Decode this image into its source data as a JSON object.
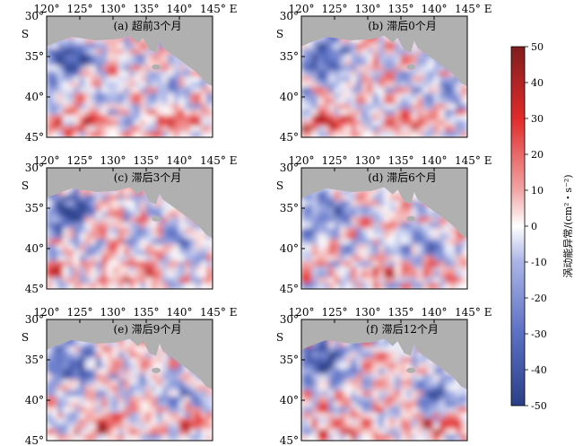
{
  "figure": {
    "colorbar": {
      "label": "涡动能异常/(cm²・s⁻²)",
      "min": -50,
      "max": 50,
      "ticks": [
        50,
        40,
        30,
        20,
        10,
        0,
        -10,
        -20,
        -30,
        -40,
        -50
      ],
      "colors": [
        "#2a3f87",
        "#5b6fc4",
        "#a9b4e6",
        "#ffffff",
        "#f2a5a5",
        "#e22a2a",
        "#7f1d1d"
      ]
    },
    "land_color": "#b0b0b0"
  },
  "chart_data": {
    "type": "heatmap",
    "x_tick_labels": [
      "120°",
      "125°",
      "130°",
      "135°",
      "140°",
      "145° E"
    ],
    "y_tick_labels": [
      "30°",
      "35°",
      "40°",
      "45°"
    ],
    "y_hemisphere_label": "S",
    "x_range": [
      120,
      145
    ],
    "y_range": [
      -45,
      -30
    ],
    "panels": [
      {
        "id": "a",
        "title": "(a) 超前3个月"
      },
      {
        "id": "b",
        "title": "(b) 滞后0个月"
      },
      {
        "id": "c",
        "title": "(c) 滞后3个月"
      },
      {
        "id": "d",
        "title": "(d) 滞后6个月"
      },
      {
        "id": "e",
        "title": "(e) 滞后9个月"
      },
      {
        "id": "f",
        "title": "(f) 滞后12个月"
      }
    ]
  }
}
